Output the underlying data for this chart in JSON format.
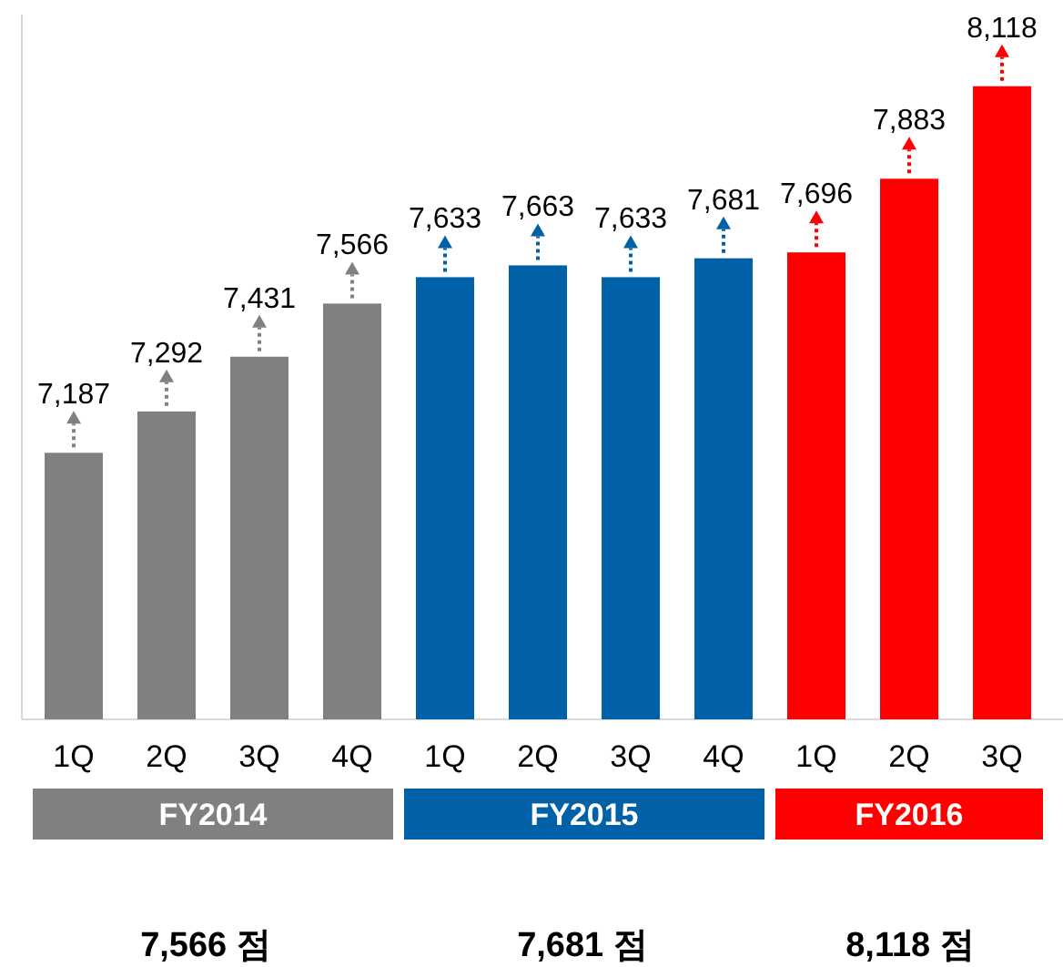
{
  "chart_data": {
    "type": "bar",
    "categories": [
      "1Q",
      "2Q",
      "3Q",
      "4Q",
      "1Q",
      "2Q",
      "3Q",
      "4Q",
      "1Q",
      "2Q",
      "3Q"
    ],
    "series": [
      {
        "name": "FY2014",
        "color": "#808080",
        "values": [
          7187,
          7292,
          7431,
          7566,
          null,
          null,
          null,
          null,
          null,
          null,
          null
        ],
        "value_labels": [
          "7,187",
          "7,292",
          "7,431",
          "7,566",
          null,
          null,
          null,
          null,
          null,
          null,
          null
        ]
      },
      {
        "name": "FY2015",
        "color": "#0060a8",
        "values": [
          null,
          null,
          null,
          null,
          7633,
          7663,
          7633,
          7681,
          null,
          null,
          null
        ],
        "value_labels": [
          null,
          null,
          null,
          null,
          "7,633",
          "7,663",
          "7,633",
          "7,681",
          null,
          null,
          null
        ]
      },
      {
        "name": "FY2016",
        "color": "#ff0000",
        "values": [
          null,
          null,
          null,
          null,
          null,
          null,
          null,
          null,
          7696,
          7883,
          8118
        ],
        "value_labels": [
          null,
          null,
          null,
          null,
          null,
          null,
          null,
          null,
          "7,696",
          "7,883",
          "8,118"
        ]
      }
    ],
    "ylim": [
      6510,
      8300
    ],
    "legend": "bottom",
    "annotations": [
      "7,566 점",
      "7,681 점",
      "8,118 점"
    ]
  }
}
